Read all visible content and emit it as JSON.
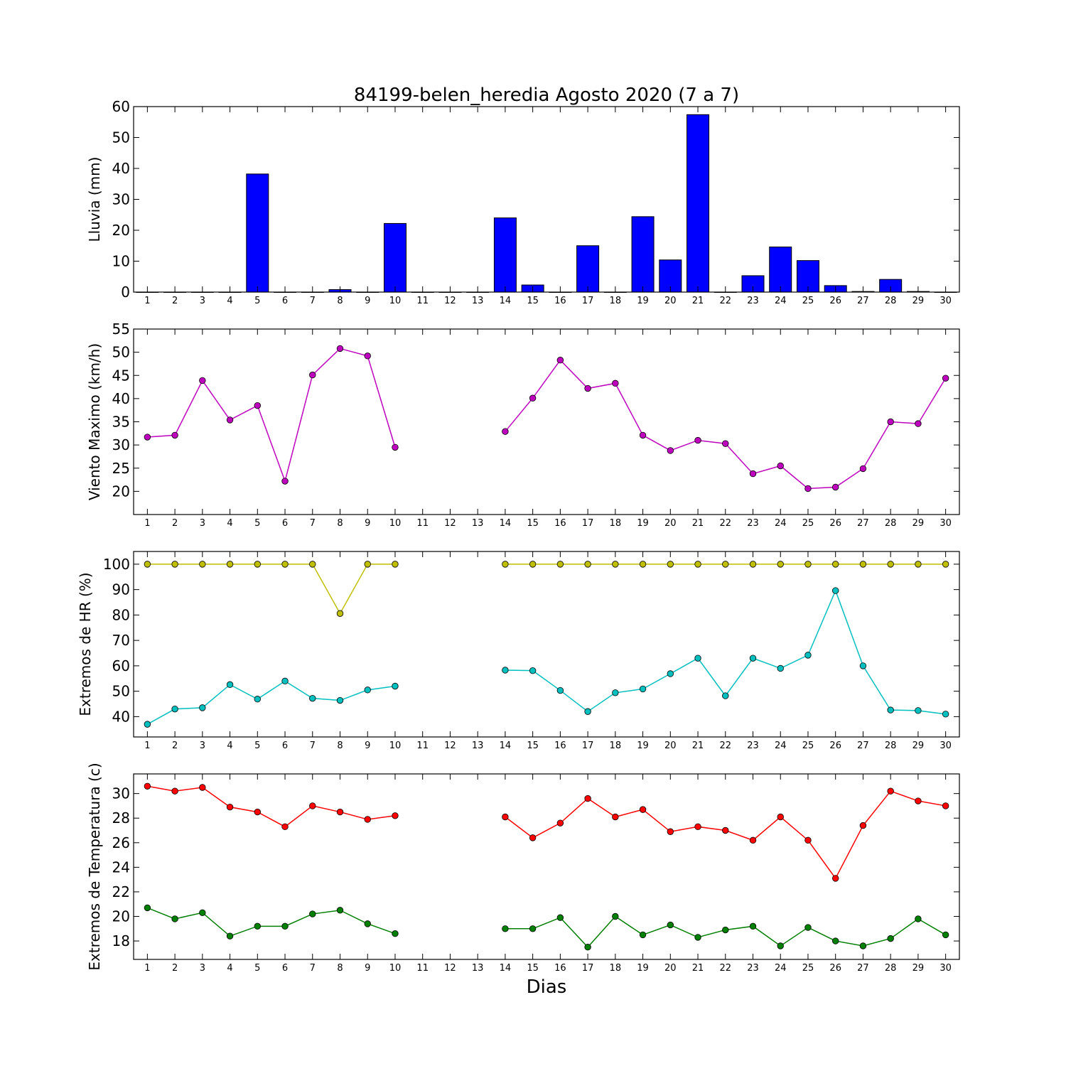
{
  "title": "84199-belen_heredia Agosto 2020  (7 a 7)",
  "xlabel": "Dias",
  "chart_data": [
    {
      "type": "bar",
      "ylabel": "Lluvia (mm)",
      "ylim": [
        0,
        60
      ],
      "yticks": [
        0,
        10,
        20,
        30,
        40,
        50,
        60
      ],
      "x": [
        1,
        2,
        3,
        4,
        5,
        6,
        7,
        8,
        9,
        10,
        11,
        12,
        13,
        14,
        15,
        16,
        17,
        18,
        19,
        20,
        21,
        22,
        23,
        24,
        25,
        26,
        27,
        28,
        29,
        30
      ],
      "xticks": [
        1,
        2,
        3,
        4,
        5,
        6,
        7,
        8,
        9,
        10,
        11,
        12,
        13,
        14,
        15,
        16,
        17,
        18,
        19,
        20,
        21,
        22,
        23,
        24,
        25,
        26,
        27,
        28,
        29,
        30
      ],
      "xlim": [
        0.5,
        30.5
      ],
      "series": [
        {
          "color": "#0000ff",
          "values": [
            0,
            0,
            0,
            0,
            38.2,
            0,
            0,
            0.8,
            0,
            22.2,
            0,
            0,
            0,
            24,
            2.3,
            0,
            15,
            0,
            24.4,
            10.4,
            57.4,
            0,
            5.3,
            14.6,
            10.2,
            2.1,
            0.2,
            4.1,
            0.2,
            0
          ]
        }
      ]
    },
    {
      "type": "line",
      "ylabel": "Viento Maximo (km/h)",
      "ylim": [
        15,
        55
      ],
      "yticks": [
        20,
        25,
        30,
        35,
        40,
        45,
        50,
        55
      ],
      "x": [
        1,
        2,
        3,
        4,
        5,
        6,
        7,
        8,
        9,
        10,
        11,
        12,
        13,
        14,
        15,
        16,
        17,
        18,
        19,
        20,
        21,
        22,
        23,
        24,
        25,
        26,
        27,
        28,
        29,
        30
      ],
      "xticks": [
        1,
        2,
        3,
        4,
        5,
        6,
        7,
        8,
        9,
        10,
        11,
        12,
        13,
        14,
        15,
        16,
        17,
        18,
        19,
        20,
        21,
        22,
        23,
        24,
        25,
        26,
        27,
        28,
        29,
        30
      ],
      "xlim": [
        0.5,
        30.5
      ],
      "series": [
        {
          "color": "#bf00bf",
          "values": [
            31.7,
            32.1,
            43.9,
            35.4,
            38.5,
            22.2,
            45.1,
            50.8,
            49.2,
            29.5,
            null,
            null,
            null,
            32.9,
            40.1,
            48.3,
            42.2,
            43.3,
            32.1,
            28.8,
            31,
            30.3,
            23.8,
            25.5,
            20.6,
            20.9,
            24.9,
            35,
            34.6,
            44.4
          ]
        }
      ]
    },
    {
      "type": "line",
      "ylabel": "Extremos de HR (%)",
      "ylim": [
        32,
        105
      ],
      "yticks": [
        40,
        50,
        60,
        70,
        80,
        90,
        100
      ],
      "x": [
        1,
        2,
        3,
        4,
        5,
        6,
        7,
        8,
        9,
        10,
        11,
        12,
        13,
        14,
        15,
        16,
        17,
        18,
        19,
        20,
        21,
        22,
        23,
        24,
        25,
        26,
        27,
        28,
        29,
        30
      ],
      "xticks": [
        1,
        2,
        3,
        4,
        5,
        6,
        7,
        8,
        9,
        10,
        11,
        12,
        13,
        14,
        15,
        16,
        17,
        18,
        19,
        20,
        21,
        22,
        23,
        24,
        25,
        26,
        27,
        28,
        29,
        30
      ],
      "xlim": [
        0.5,
        30.5
      ],
      "series": [
        {
          "color": "#bfbf00",
          "values": [
            100,
            100,
            100,
            100,
            100,
            100,
            100,
            80.6,
            100,
            100,
            null,
            null,
            null,
            100,
            100,
            100,
            100,
            100,
            100,
            100,
            100,
            100,
            100,
            100,
            100,
            100,
            100,
            100,
            100,
            100
          ]
        },
        {
          "color": "#00bfbf",
          "values": [
            37,
            43,
            43.5,
            52.6,
            46.9,
            54,
            47.2,
            46.4,
            50.5,
            52,
            null,
            null,
            null,
            58.3,
            58.1,
            50.3,
            42,
            49.4,
            50.9,
            56.9,
            63,
            48.2,
            63,
            59,
            64.2,
            89.6,
            60,
            42.6,
            42.4,
            41
          ]
        }
      ]
    },
    {
      "type": "line",
      "ylabel": "Extremos de Temperatura (c)",
      "ylim": [
        16.5,
        31.6
      ],
      "yticks": [
        18,
        20,
        22,
        24,
        26,
        28,
        30
      ],
      "x": [
        1,
        2,
        3,
        4,
        5,
        6,
        7,
        8,
        9,
        10,
        11,
        12,
        13,
        14,
        15,
        16,
        17,
        18,
        19,
        20,
        21,
        22,
        23,
        24,
        25,
        26,
        27,
        28,
        29,
        30
      ],
      "xticks": [
        1,
        2,
        3,
        4,
        5,
        6,
        7,
        8,
        9,
        10,
        11,
        12,
        13,
        14,
        15,
        16,
        17,
        18,
        19,
        20,
        21,
        22,
        23,
        24,
        25,
        26,
        27,
        28,
        29,
        30
      ],
      "xlim": [
        0.5,
        30.5
      ],
      "series": [
        {
          "color": "#ff0000",
          "values": [
            30.6,
            30.2,
            30.5,
            28.9,
            28.5,
            27.3,
            29,
            28.5,
            27.9,
            28.2,
            null,
            null,
            null,
            28.1,
            26.4,
            27.6,
            29.6,
            28.1,
            28.7,
            26.9,
            27.3,
            27,
            26.2,
            28.1,
            26.2,
            23.1,
            27.4,
            30.2,
            29.4,
            29
          ]
        },
        {
          "color": "#008000",
          "values": [
            20.7,
            19.8,
            20.3,
            18.4,
            19.2,
            19.2,
            20.2,
            20.5,
            19.4,
            18.6,
            null,
            null,
            null,
            19,
            19,
            19.9,
            17.5,
            20,
            18.5,
            19.3,
            18.3,
            18.9,
            19.2,
            17.6,
            19.1,
            18,
            17.6,
            18.2,
            19.8,
            18.5
          ]
        }
      ]
    }
  ]
}
